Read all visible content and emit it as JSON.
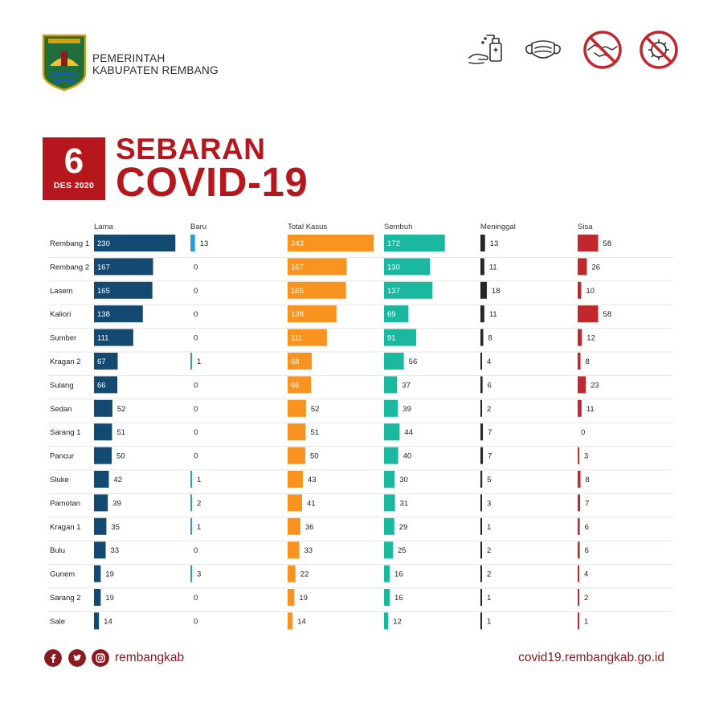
{
  "header": {
    "org_line1": "PEMERINTAH",
    "org_line2": "KABUPATEN REMBANG",
    "emblem_text": "KABUPATEN REMBANG",
    "icons": [
      "hand-sanitizer-icon",
      "face-mask-icon",
      "no-handshake-icon",
      "no-virus-icon"
    ]
  },
  "date": {
    "day": "6",
    "month_year": "DES 2020"
  },
  "title": {
    "line1": "SEBARAN",
    "line2": "COVID-19"
  },
  "chart_data": {
    "type": "bar",
    "categories": [
      "Rembang 1",
      "Rembang 2",
      "Lasem",
      "Kaliori",
      "Sumber",
      "Kragan 2",
      "Sulang",
      "Sedan",
      "Sarang 1",
      "Pancur",
      "Sluke",
      "Pamotan",
      "Kragan 1",
      "Bulu",
      "Gunem",
      "Sarang 2",
      "Sale"
    ],
    "series": [
      {
        "name": "Lama",
        "color": "#144a72",
        "values": [
          230,
          167,
          165,
          138,
          111,
          67,
          66,
          52,
          51,
          50,
          42,
          39,
          35,
          33,
          19,
          19,
          14
        ]
      },
      {
        "name": "Baru",
        "color": "#2a9fd6",
        "values": [
          13,
          0,
          0,
          0,
          0,
          1,
          0,
          0,
          0,
          0,
          1,
          2,
          1,
          0,
          3,
          0,
          0
        ]
      },
      {
        "name": "Total Kasus",
        "color": "#f7931e",
        "values": [
          243,
          167,
          165,
          138,
          111,
          68,
          66,
          52,
          51,
          50,
          43,
          41,
          36,
          33,
          22,
          19,
          14
        ]
      },
      {
        "name": "Sembuh",
        "color": "#1ab99f",
        "values": [
          172,
          130,
          137,
          69,
          91,
          56,
          37,
          39,
          44,
          40,
          30,
          31,
          29,
          25,
          16,
          16,
          12
        ]
      },
      {
        "name": "Meninggal",
        "color": "#262626",
        "values": [
          13,
          11,
          18,
          11,
          8,
          4,
          6,
          2,
          7,
          7,
          5,
          3,
          1,
          2,
          2,
          1,
          1
        ]
      },
      {
        "name": "Sisa",
        "color": "#c1272d",
        "values": [
          58,
          26,
          10,
          58,
          12,
          8,
          23,
          11,
          0,
          3,
          8,
          7,
          6,
          6,
          4,
          2,
          1
        ]
      }
    ]
  },
  "footer": {
    "handle": "rembangkab",
    "website": "covid19.rembangkab.go.id"
  }
}
